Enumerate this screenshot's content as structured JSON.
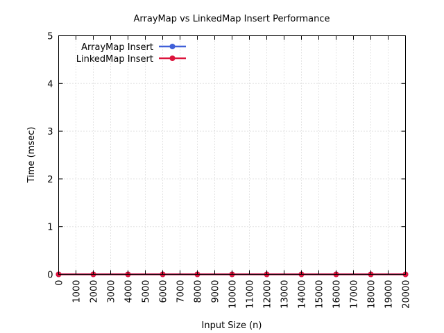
{
  "chart_data": {
    "type": "line",
    "title": "ArrayMap vs LinkedMap Insert Performance",
    "xlabel": "Input Size (n)",
    "ylabel": "Time (msec)",
    "xlim": [
      0,
      20000
    ],
    "ylim": [
      0,
      5
    ],
    "x_ticks": [
      "0",
      "1000",
      "2000",
      "3000",
      "4000",
      "5000",
      "6000",
      "7000",
      "8000",
      "9000",
      "10000",
      "11000",
      "12000",
      "13000",
      "14000",
      "15000",
      "16000",
      "17000",
      "18000",
      "19000",
      "20000"
    ],
    "y_ticks": [
      "0",
      "1",
      "2",
      "3",
      "4",
      "5"
    ],
    "grid": true,
    "legend_position": "top-left",
    "series": [
      {
        "name": "ArrayMap Insert",
        "color": "#4060d8",
        "x": [
          0,
          2000,
          4000,
          6000,
          8000,
          10000,
          12000,
          14000,
          16000,
          18000,
          20000
        ],
        "y": [
          0,
          0,
          0,
          0,
          0,
          0,
          0,
          0,
          0,
          0,
          0
        ]
      },
      {
        "name": "LinkedMap Insert",
        "color": "#dc143c",
        "x": [
          0,
          2000,
          4000,
          6000,
          8000,
          10000,
          12000,
          14000,
          16000,
          18000,
          20000
        ],
        "y": [
          0,
          0,
          0,
          0,
          0,
          0,
          0,
          0,
          0,
          0,
          0
        ]
      }
    ]
  }
}
